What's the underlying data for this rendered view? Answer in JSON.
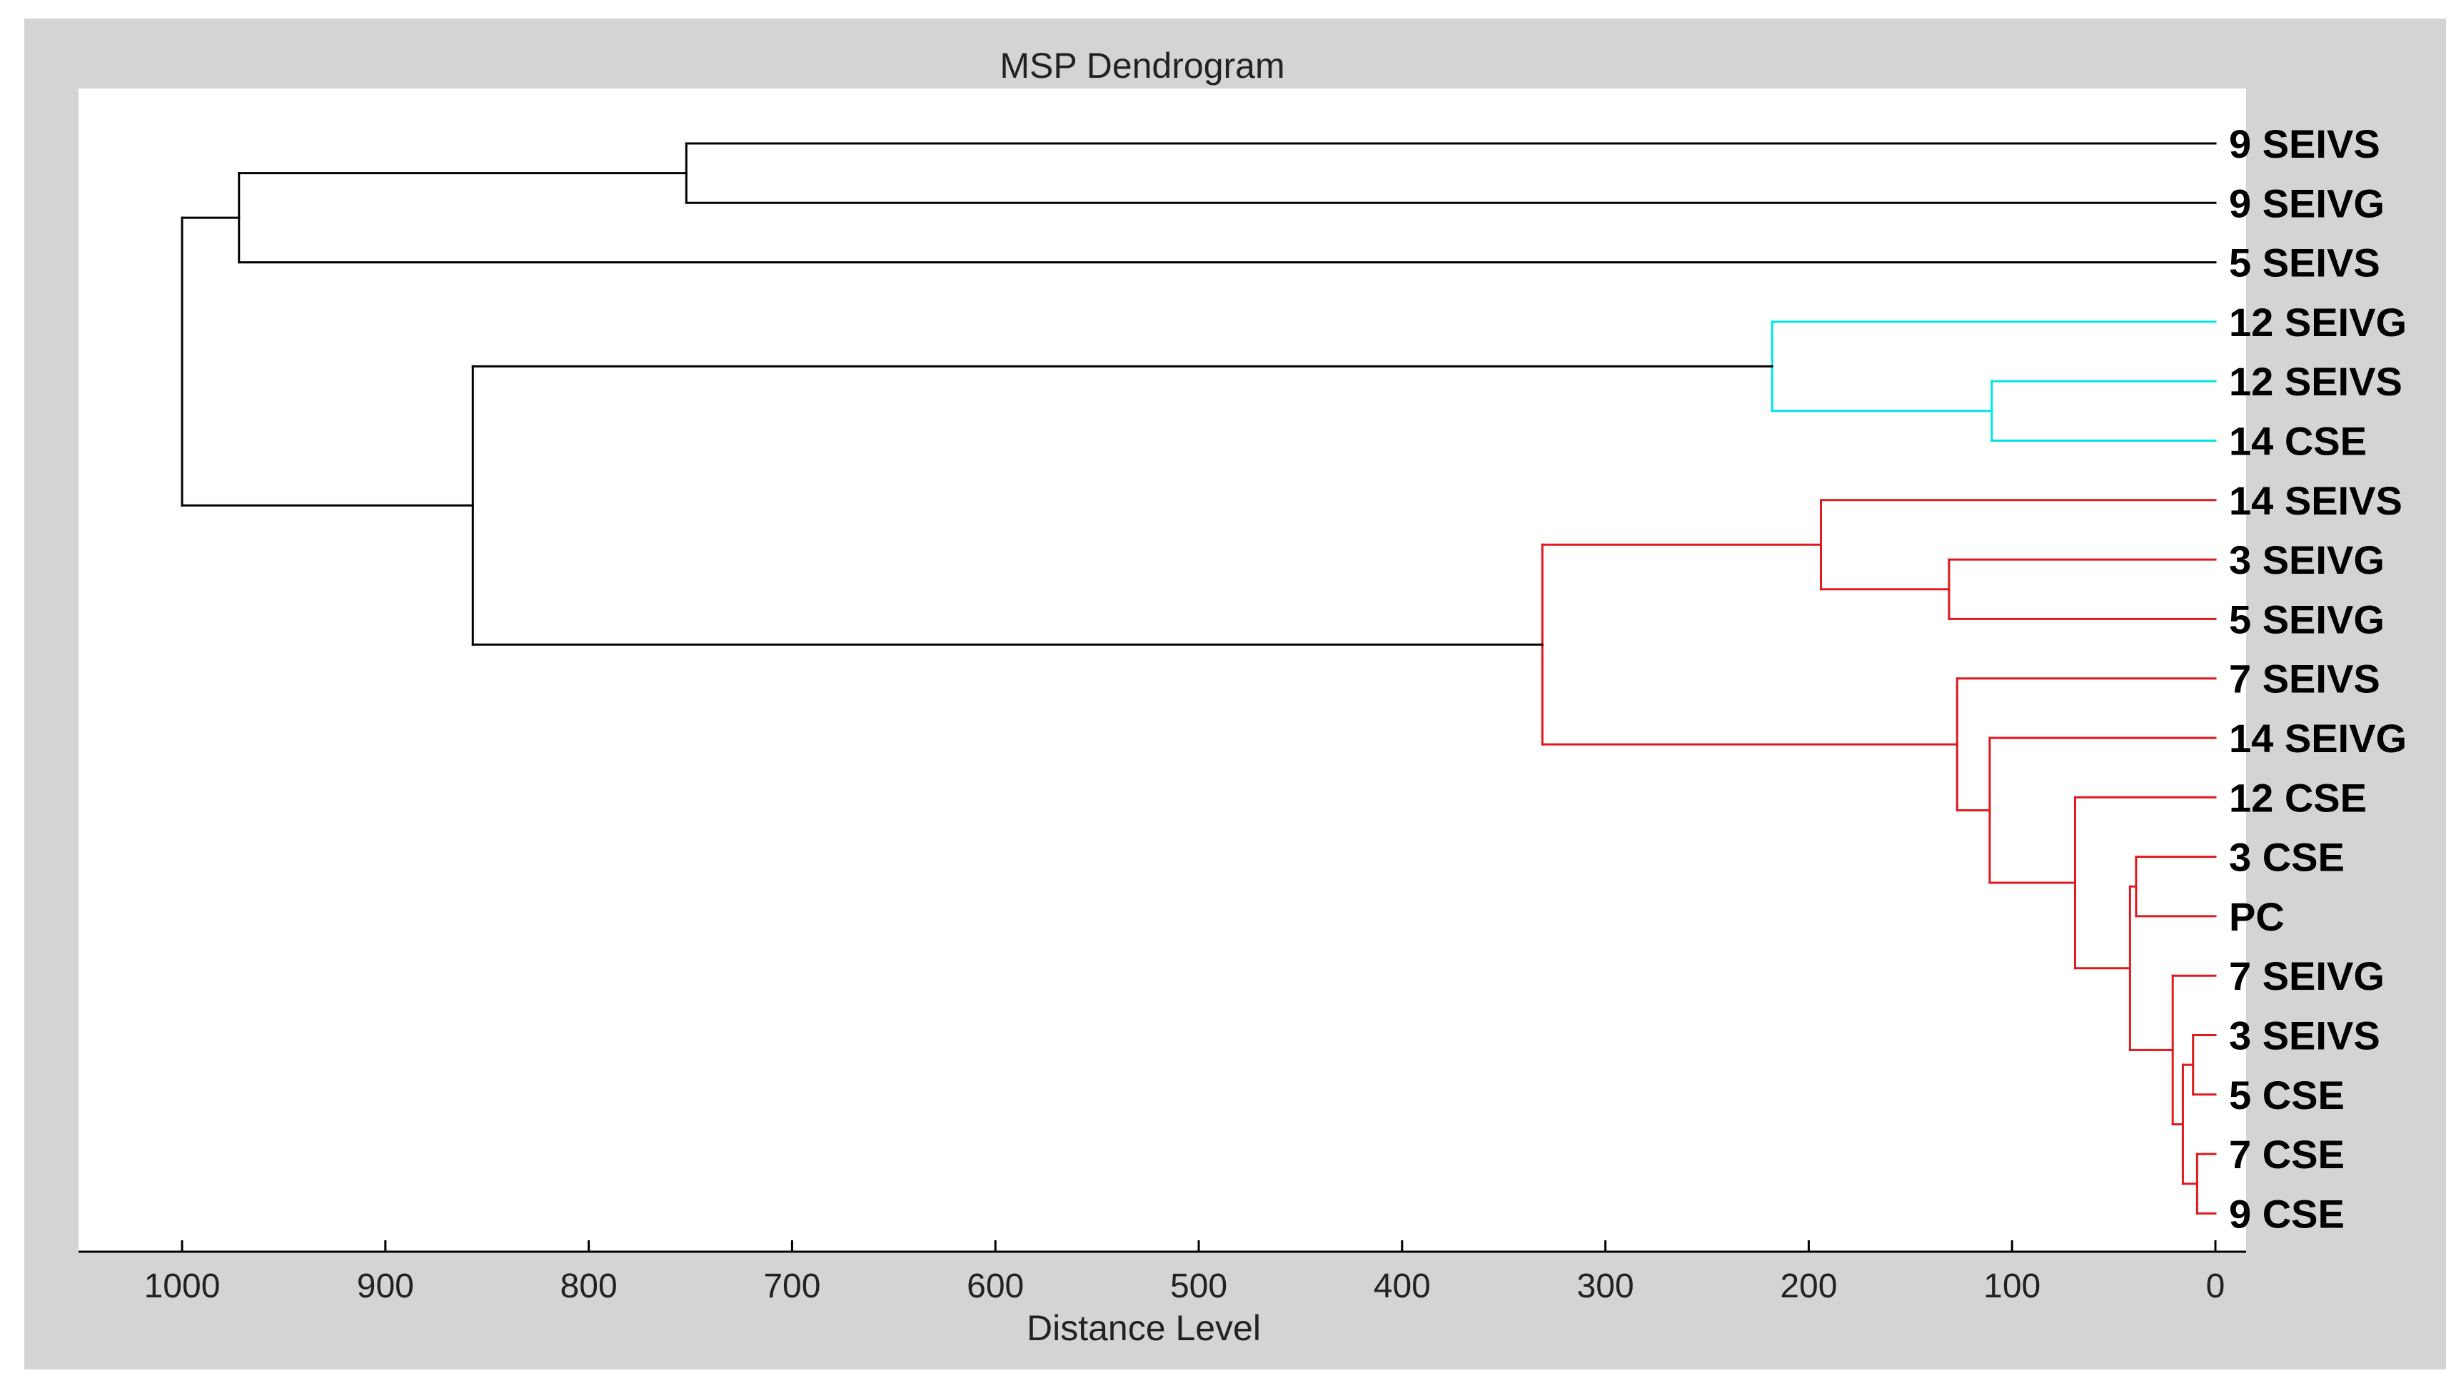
{
  "chart_data": {
    "type": "dendrogram",
    "title": "MSP Dendrogram",
    "xlabel": "Distance Level",
    "xlim": [
      1050,
      0
    ],
    "x_ticks": [
      1000,
      900,
      800,
      700,
      600,
      500,
      400,
      300,
      200,
      100,
      0
    ],
    "x_tick_labels": [
      "1000",
      "900",
      "800",
      "700",
      "600",
      "500",
      "400",
      "300",
      "200",
      "100",
      "0"
    ],
    "leaves": [
      "9 SEIVS",
      "9 SEIVG",
      "5 SEIVS",
      "12 SEIVG",
      "12 SEIVS",
      "14 CSE",
      "14 SEIVS",
      "3 SEIVG",
      "5 SEIVG",
      "7 SEIVS",
      "14 SEIVG",
      "12 CSE",
      "3 CSE",
      "PC",
      "7 SEIVG",
      "3 SEIVS",
      "5 CSE",
      "7 CSE",
      "9 CSE"
    ],
    "colors": {
      "root": "#000000",
      "cyan_cluster": "#00e5e5",
      "red_cluster": "#e0191e"
    },
    "merges": [
      {
        "id": "m1",
        "children": [
          "L0",
          "L1"
        ],
        "distance": 752,
        "color": "root"
      },
      {
        "id": "m2",
        "children": [
          "m1",
          "L2"
        ],
        "distance": 972,
        "color": "root"
      },
      {
        "id": "m3",
        "children": [
          "L4",
          "L5"
        ],
        "distance": 110,
        "color": "cyan_cluster"
      },
      {
        "id": "m4",
        "children": [
          "L3",
          "m3"
        ],
        "distance": 218,
        "color": "cyan_cluster"
      },
      {
        "id": "m5",
        "children": [
          "L7",
          "L8"
        ],
        "distance": 131,
        "color": "red_cluster"
      },
      {
        "id": "m6",
        "children": [
          "L6",
          "m5"
        ],
        "distance": 194,
        "color": "red_cluster"
      },
      {
        "id": "m7",
        "children": [
          "L12",
          "L13"
        ],
        "distance": 39,
        "color": "red_cluster"
      },
      {
        "id": "m8",
        "children": [
          "L17",
          "L18"
        ],
        "distance": 9,
        "color": "red_cluster"
      },
      {
        "id": "m9",
        "children": [
          "L15",
          "L16"
        ],
        "distance": 11,
        "color": "red_cluster"
      },
      {
        "id": "m10",
        "children": [
          "m9",
          "m8"
        ],
        "distance": 16,
        "color": "red_cluster"
      },
      {
        "id": "m11",
        "children": [
          "L14",
          "m10"
        ],
        "distance": 21,
        "color": "red_cluster"
      },
      {
        "id": "m12",
        "children": [
          "m7",
          "m11"
        ],
        "distance": 42,
        "color": "red_cluster"
      },
      {
        "id": "m13",
        "children": [
          "L11",
          "m12"
        ],
        "distance": 69,
        "color": "red_cluster"
      },
      {
        "id": "m14",
        "children": [
          "L10",
          "m13"
        ],
        "distance": 111,
        "color": "red_cluster"
      },
      {
        "id": "m15",
        "children": [
          "L9",
          "m14"
        ],
        "distance": 127,
        "color": "red_cluster"
      },
      {
        "id": "m16",
        "children": [
          "m6",
          "m15"
        ],
        "distance": 331,
        "color": "red_cluster"
      },
      {
        "id": "m17",
        "children": [
          "m4",
          "m16"
        ],
        "distance": 857,
        "color": "root"
      },
      {
        "id": "m18",
        "children": [
          "m2",
          "m17"
        ],
        "distance": 1000,
        "color": "root"
      }
    ]
  }
}
